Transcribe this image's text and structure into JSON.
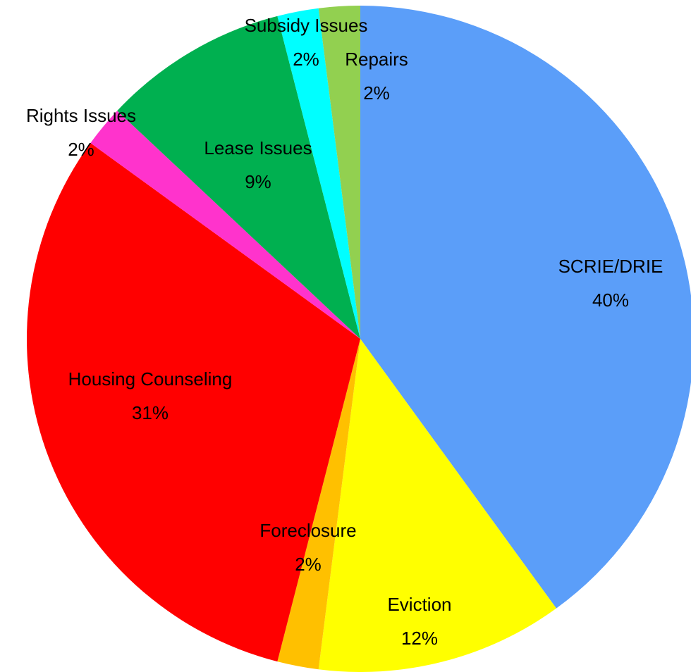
{
  "chart_data": {
    "type": "pie",
    "categories": [
      "SCRIE/DRIE",
      "Eviction",
      "Foreclosure",
      "Housing Counseling",
      "Rights Issues",
      "Lease Issues",
      "Subsidy Issues",
      "Repairs"
    ],
    "values": [
      40,
      12,
      2,
      31,
      2,
      9,
      2,
      2
    ],
    "value_labels": [
      "40%",
      "12%",
      "2%",
      "31%",
      "2%",
      "9%",
      "2%",
      "2%"
    ],
    "colors": [
      "#5b9ef9",
      "#ffff00",
      "#ffc000",
      "#ff0000",
      "#ff33cc",
      "#00b050",
      "#00ffff",
      "#92d050"
    ]
  }
}
